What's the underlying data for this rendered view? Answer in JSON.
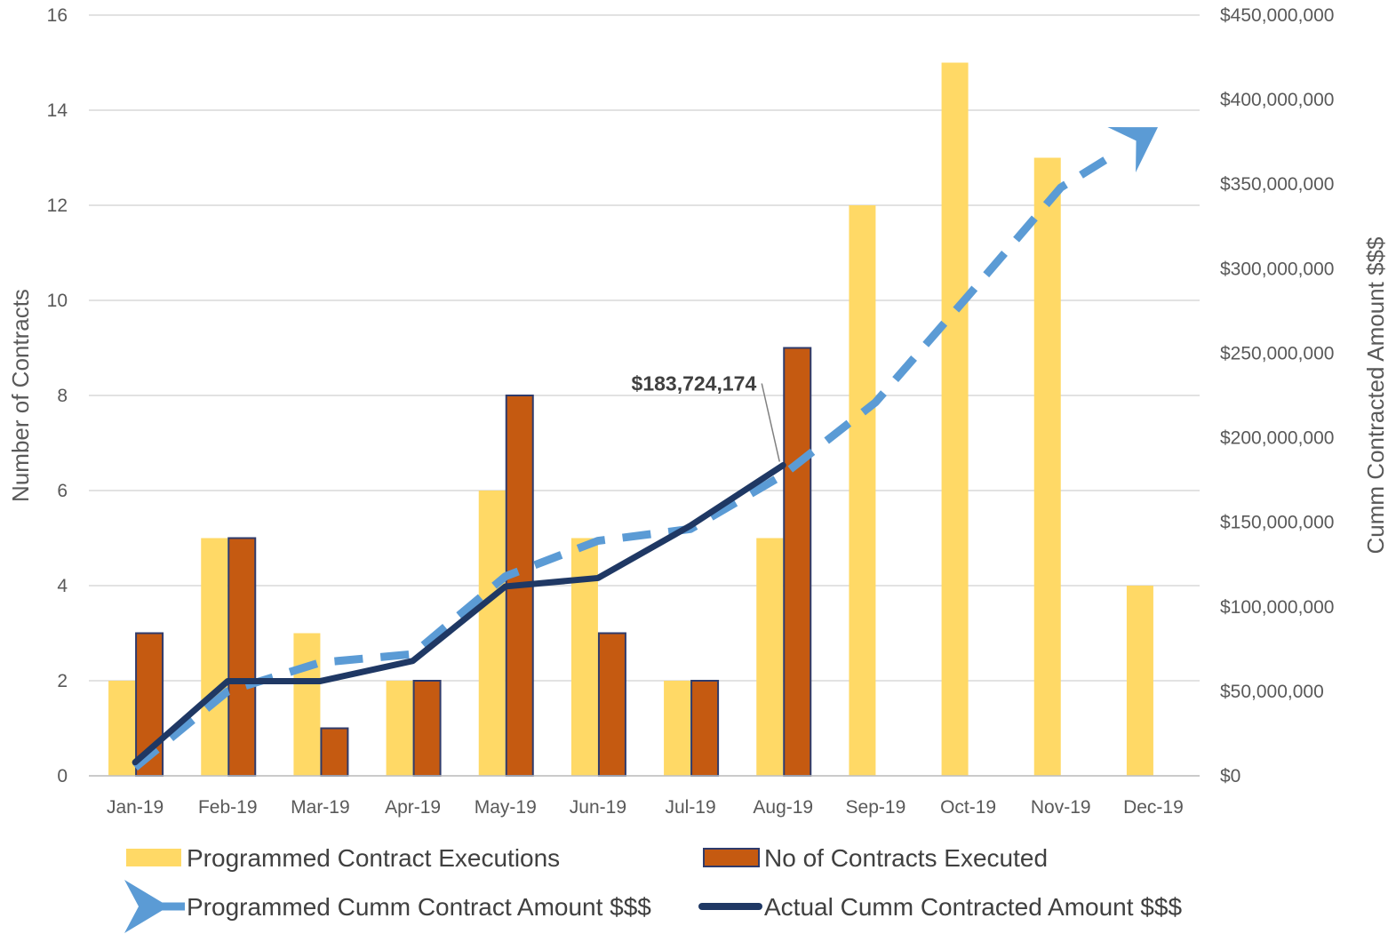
{
  "chart_data": {
    "type": "bar",
    "categories": [
      "Jan-19",
      "Feb-19",
      "Mar-19",
      "Apr-19",
      "May-19",
      "Jun-19",
      "Jul-19",
      "Aug-19",
      "Sep-19",
      "Oct-19",
      "Nov-19",
      "Dec-19"
    ],
    "series": [
      {
        "name": "Programmed Contract Executions",
        "kind": "bar",
        "axis": "left",
        "color": "#FFD966",
        "values": [
          2,
          5,
          3,
          2,
          6,
          5,
          2,
          5,
          12,
          15,
          13,
          4
        ]
      },
      {
        "name": "No of Contracts Executed",
        "kind": "bar",
        "axis": "left",
        "color": "#C55A11",
        "values": [
          3,
          5,
          1,
          2,
          8,
          3,
          2,
          9,
          null,
          null,
          null,
          null
        ]
      },
      {
        "name": "Programmed Cumm Contract Amount $$$",
        "kind": "line-dashed-arrow",
        "axis": "right",
        "color": "#5B9BD5",
        "values": [
          5000000,
          50000000,
          67000000,
          72000000,
          118000000,
          139000000,
          146000000,
          178000000,
          221000000,
          284000000,
          348000000,
          382000000
        ]
      },
      {
        "name": "Actual Cumm Contracted Amount $$$",
        "kind": "line",
        "axis": "right",
        "color": "#1F3864",
        "values": [
          8000000,
          56000000,
          56000000,
          68000000,
          112000000,
          117000000,
          148000000,
          183724174,
          null,
          null,
          null,
          null
        ]
      }
    ],
    "ylabel": "Number of Contracts",
    "y2label": "Cumm Contracted Amount  $$$",
    "ylim": [
      0,
      16
    ],
    "y2lim": [
      0,
      450000000
    ],
    "yticks": [
      "0",
      "2",
      "4",
      "6",
      "8",
      "10",
      "12",
      "14",
      "16"
    ],
    "y2ticks": [
      "$0",
      "$50,000,000",
      "$100,000,000",
      "$150,000,000",
      "$200,000,000",
      "$250,000,000",
      "$300,000,000",
      "$350,000,000",
      "$400,000,000",
      "$450,000,000"
    ],
    "annotation": {
      "text": "$183,724,174",
      "category": "Aug-19",
      "series": "Actual Cumm Contracted Amount $$$"
    },
    "grid": true,
    "legend": "bottom"
  }
}
